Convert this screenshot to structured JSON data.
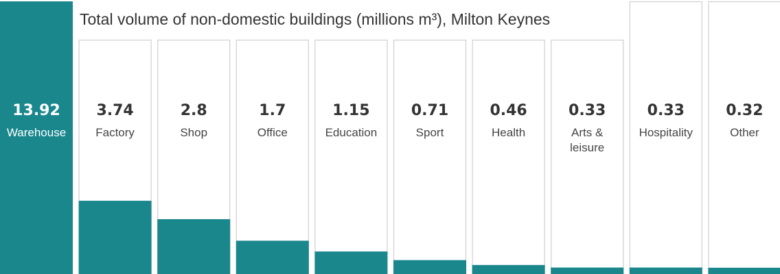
{
  "colors": {
    "bar": "#1a878d",
    "border": "#cfcfcf",
    "text": "#333333"
  },
  "chart_data": {
    "type": "bar",
    "title": "Total volume of non-domestic buildings (millions m³), Milton Keynes",
    "categories": [
      "Warehouse",
      "Factory",
      "Shop",
      "Office",
      "Education",
      "Sport",
      "Health",
      "Arts & leisure",
      "Hospitality",
      "Other"
    ],
    "value_labels": [
      "13.92",
      "3.74",
      "2.8",
      "1.7",
      "1.15",
      "0.71",
      "0.46",
      "0.33",
      "0.33",
      "0.32"
    ],
    "values": [
      13.92,
      3.74,
      2.8,
      1.7,
      1.15,
      0.71,
      0.46,
      0.33,
      0.33,
      0.32
    ],
    "ylim": [
      0,
      13.92
    ],
    "grid": false,
    "legend": "none"
  }
}
